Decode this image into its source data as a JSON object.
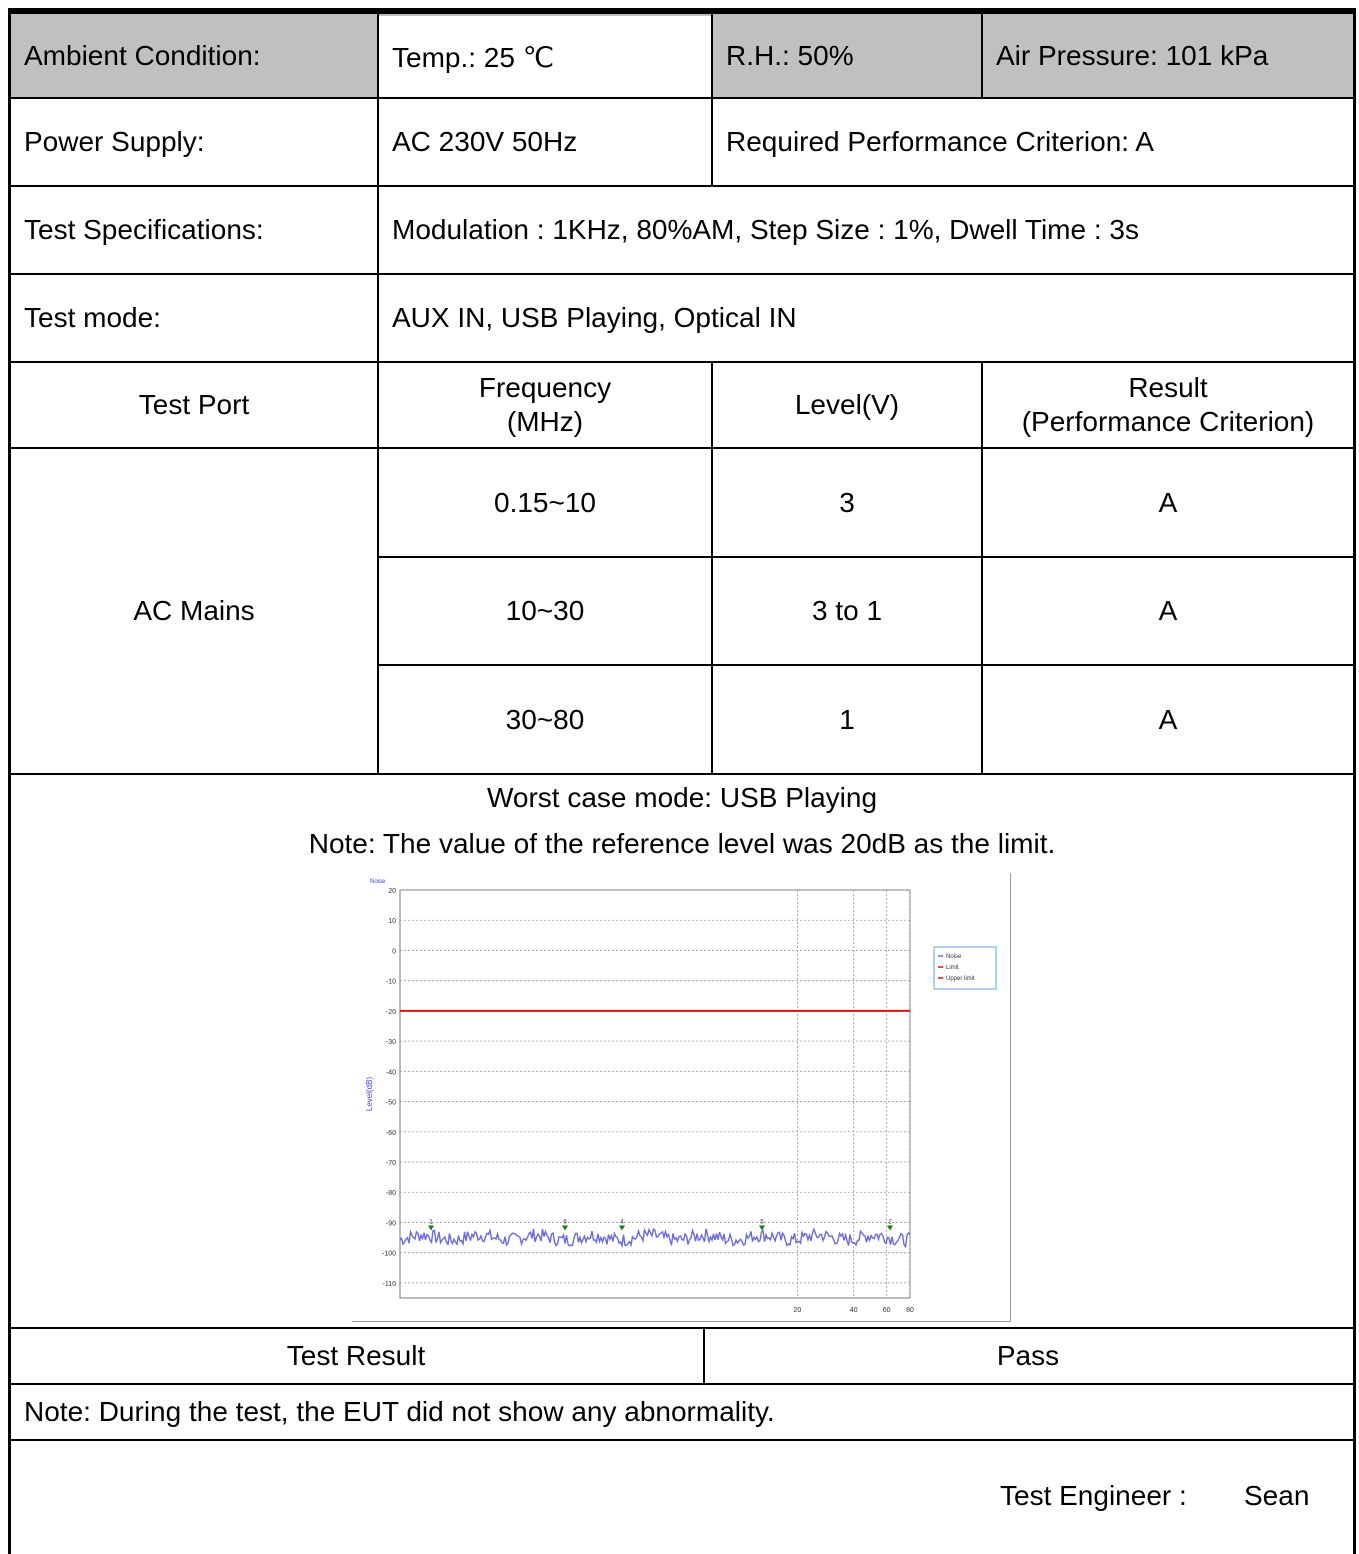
{
  "ambient": {
    "label": "Ambient Condition:",
    "temp": "Temp.: 25 ℃",
    "rh": "R.H.: 50%",
    "pressure": "Air Pressure: 101 kPa"
  },
  "power": {
    "label": "Power Supply:",
    "value": "AC 230V 50Hz",
    "criterion": "Required Performance Criterion: A"
  },
  "spec": {
    "label": "Test Specifications:",
    "value": "Modulation : 1KHz, 80%AM, Step Size : 1%, Dwell Time : 3s"
  },
  "mode": {
    "label": "Test mode:",
    "value": "AUX IN, USB Playing, Optical IN"
  },
  "table": {
    "headers": {
      "port": "Test Port",
      "freq_line1": "Frequency",
      "freq_line2": "(MHz)",
      "level": "Level(V)",
      "result_line1": "Result",
      "result_line2": "(Performance Criterion)"
    },
    "port": "AC Mains",
    "rows": [
      {
        "freq": "0.15~10",
        "level": "3",
        "result": "A"
      },
      {
        "freq": "10~30",
        "level": "3 to 1",
        "result": "A"
      },
      {
        "freq": "30~80",
        "level": "1",
        "result": "A"
      }
    ]
  },
  "worst_case": "Worst case mode: USB Playing",
  "note_ref": "Note: The value of the reference level was 20dB as the limit.",
  "chart_data": {
    "type": "line",
    "title": "Noise",
    "xlabel": "",
    "ylabel": "Level(dB)",
    "x_scale": "log",
    "xlim": [
      0.15,
      80
    ],
    "ylim": [
      -115,
      20
    ],
    "y_ticks": [
      20,
      10,
      0,
      -10,
      -20,
      -30,
      -40,
      -50,
      -60,
      -70,
      -80,
      -90,
      -100,
      -110
    ],
    "x_tick_labels": [
      "20",
      "40",
      "60",
      "80"
    ],
    "legend_position": "right",
    "grid": true,
    "legend": [
      "Noise",
      "Limit",
      "Upper limit"
    ],
    "colors": {
      "noise": "#6a6adc",
      "limit": "#dd1111",
      "upper": "#dd1111",
      "marker": "#1a7a1a"
    },
    "series": [
      {
        "name": "Noise",
        "values_note": "noise floor approx -95 dB across band",
        "level": -95
      },
      {
        "name": "Limit",
        "level": -20
      }
    ],
    "markers": [
      "1",
      "6",
      "4",
      "3",
      "5",
      "2"
    ]
  },
  "result": {
    "label": "Test Result",
    "value": "Pass"
  },
  "note_eut": "Note: During the test, the EUT did not show any abnormality.",
  "engineer": {
    "label": "Test Engineer :",
    "name": "Sean"
  }
}
